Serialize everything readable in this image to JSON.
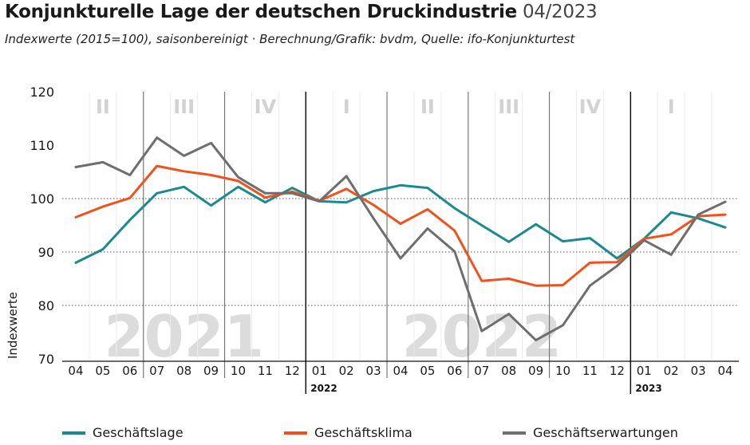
{
  "title": "Konjunkturelle Lage der deutschen Druckindustrie",
  "title_date": "04/2023",
  "subtitle": "Indexwerte (2015=100), saisonbereinigt · Berechnung/Grafik: bvdm, Quelle: ifo-Konjunkturtest",
  "chart_data": {
    "type": "line",
    "ylabel": "Indexwerte",
    "ylim": [
      70,
      120
    ],
    "yticks": [
      70,
      80,
      90,
      100,
      110,
      120
    ],
    "x": [
      "04",
      "05",
      "06",
      "07",
      "08",
      "09",
      "10",
      "11",
      "12",
      "01",
      "02",
      "03",
      "04",
      "05",
      "06",
      "07",
      "08",
      "09",
      "10",
      "11",
      "12",
      "01",
      "02",
      "03",
      "04"
    ],
    "year_markers": [
      {
        "label": "2022",
        "index": 9
      },
      {
        "label": "2023",
        "index": 21
      }
    ],
    "year_watermarks": [
      {
        "label": "2021",
        "center_index": 4
      },
      {
        "label": "2022",
        "center_index": 15
      }
    ],
    "quarters": [
      {
        "label": "II",
        "start": 0,
        "end": 3
      },
      {
        "label": "III",
        "start": 3,
        "end": 6
      },
      {
        "label": "IV",
        "start": 6,
        "end": 9
      },
      {
        "label": "I",
        "start": 9,
        "end": 12
      },
      {
        "label": "II",
        "start": 12,
        "end": 15
      },
      {
        "label": "III",
        "start": 15,
        "end": 18
      },
      {
        "label": "IV",
        "start": 18,
        "end": 21
      },
      {
        "label": "I",
        "start": 21,
        "end": 24
      }
    ],
    "grid": "dotted at 90, 100 and 80",
    "legend_position": "bottom",
    "series": [
      {
        "name": "Geschäftslage",
        "color": "#1b8a8f",
        "values": [
          88,
          90.5,
          96,
          101,
          102.2,
          98.7,
          102.2,
          99.3,
          102,
          99.5,
          99.3,
          101.4,
          102.5,
          102,
          98.2,
          95,
          91.9,
          95.2,
          92,
          92.6,
          88.8,
          92.5,
          97.4,
          96.3,
          94.6
        ]
      },
      {
        "name": "Geschäftsklima",
        "color": "#f0521e",
        "values": [
          96.5,
          98.5,
          100.1,
          106.1,
          105.1,
          104.4,
          103.3,
          100.2,
          101.3,
          99.6,
          101.8,
          98.8,
          95.3,
          98,
          94,
          84.6,
          85,
          83.7,
          83.8,
          88,
          88.1,
          92.5,
          93.3,
          96.7,
          97
        ]
      },
      {
        "name": "Geschäftserwartungen",
        "color": "#6e6e6e",
        "values": [
          105.9,
          106.8,
          104.4,
          111.4,
          108,
          110.4,
          104,
          101,
          101,
          99.5,
          104.2,
          96.3,
          88.8,
          94.4,
          90.1,
          75.2,
          78.4,
          73.5,
          76.3,
          83.7,
          87.4,
          92.2,
          89.5,
          97,
          99.4
        ]
      }
    ]
  }
}
